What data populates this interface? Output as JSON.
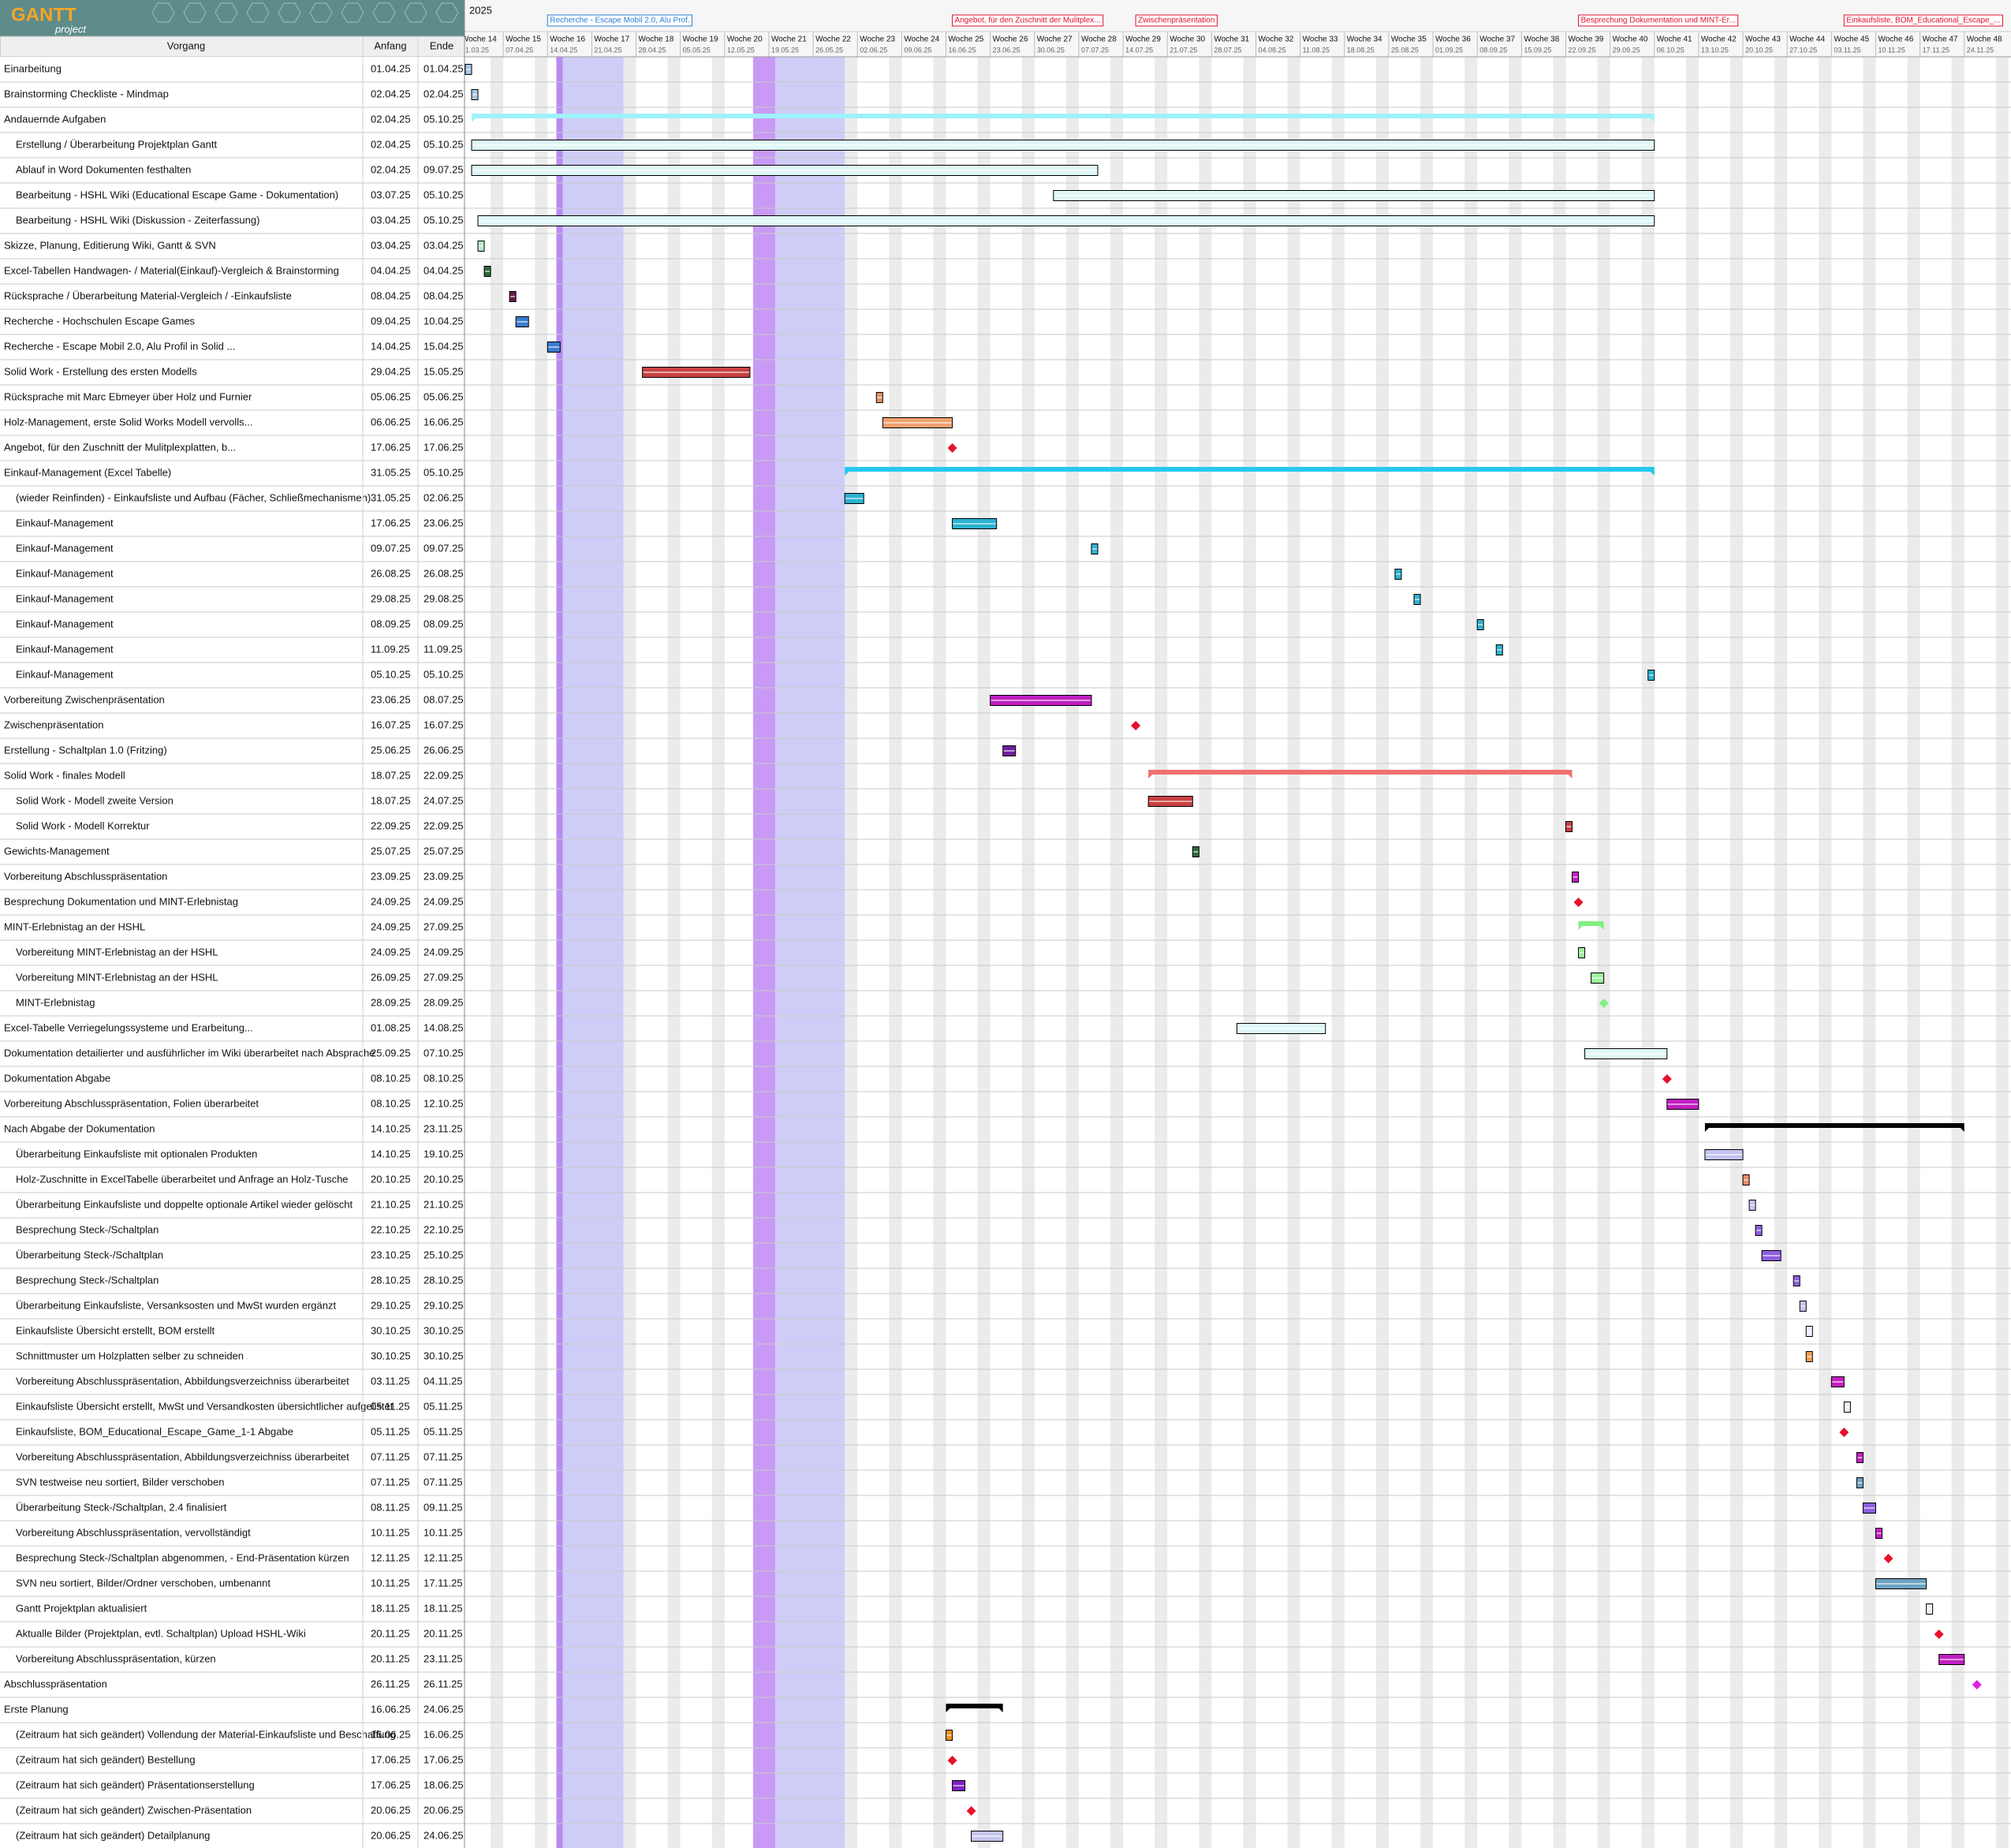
{
  "logo": {
    "title": "GANTT",
    "subtitle": "project"
  },
  "year": "2025",
  "columns": {
    "name": "Vorgang",
    "start": "Anfang",
    "end": "Ende"
  },
  "annotations": [
    "Recherche - Escape Mobil 2.0, Alu Prof.",
    "Angebot, für den Zuschnitt der Mulitplex...",
    "Zwischenpräsentation",
    "Besprechung Dokumentation und MINT-Er...",
    "Einkaufsliste, BOM_Educational_Escape_..."
  ],
  "weeks": [
    {
      "label": "Woche 14",
      "date": "31.03.25"
    },
    {
      "label": "Woche 15",
      "date": "07.04.25"
    },
    {
      "label": "Woche 16",
      "date": "14.04.25"
    },
    {
      "label": "Woche 17",
      "date": "21.04.25"
    },
    {
      "label": "Woche 18",
      "date": "28.04.25"
    },
    {
      "label": "Woche 19",
      "date": "05.05.25"
    },
    {
      "label": "Woche 20",
      "date": "12.05.25"
    },
    {
      "label": "Woche 21",
      "date": "19.05.25"
    },
    {
      "label": "Woche 22",
      "date": "26.05.25"
    },
    {
      "label": "Woche 23",
      "date": "02.06.25"
    },
    {
      "label": "Woche 24",
      "date": "09.06.25"
    },
    {
      "label": "Woche 25",
      "date": "16.06.25"
    },
    {
      "label": "Woche 26",
      "date": "23.06.25"
    },
    {
      "label": "Woche 27",
      "date": "30.06.25"
    },
    {
      "label": "Woche 28",
      "date": "07.07.25"
    },
    {
      "label": "Woche 29",
      "date": "14.07.25"
    },
    {
      "label": "Woche 30",
      "date": "21.07.25"
    },
    {
      "label": "Woche 31",
      "date": "28.07.25"
    },
    {
      "label": "Woche 32",
      "date": "04.08.25"
    },
    {
      "label": "Woche 33",
      "date": "11.08.25"
    },
    {
      "label": "Woche 34",
      "date": "18.08.25"
    },
    {
      "label": "Woche 35",
      "date": "25.08.25"
    },
    {
      "label": "Woche 36",
      "date": "01.09.25"
    },
    {
      "label": "Woche 37",
      "date": "08.09.25"
    },
    {
      "label": "Woche 38",
      "date": "15.09.25"
    },
    {
      "label": "Woche 39",
      "date": "22.09.25"
    },
    {
      "label": "Woche 40",
      "date": "29.09.25"
    },
    {
      "label": "Woche 41",
      "date": "06.10.25"
    },
    {
      "label": "Woche 42",
      "date": "13.10.25"
    },
    {
      "label": "Woche 43",
      "date": "20.10.25"
    },
    {
      "label": "Woche 44",
      "date": "27.10.25"
    },
    {
      "label": "Woche 45",
      "date": "03.11.25"
    },
    {
      "label": "Woche 46",
      "date": "10.11.25"
    },
    {
      "label": "Woche 47",
      "date": "17.11.25"
    },
    {
      "label": "Woche 48",
      "date": "24.11.25"
    }
  ],
  "tasks": [
    {
      "name": "Einarbeitung",
      "start": "01.04.25",
      "end": "01.04.25",
      "kind": "task",
      "color": "#a9c6e6",
      "indent": false
    },
    {
      "name": "Brainstorming Checkliste - Mindmap",
      "start": "02.04.25",
      "end": "02.04.25",
      "kind": "task",
      "color": "#a9c6e6",
      "indent": false
    },
    {
      "name": "Andauernde Aufgaben",
      "start": "02.04.25",
      "end": "05.10.25",
      "kind": "summary",
      "color": "#9ef2fa",
      "indent": false
    },
    {
      "name": "Erstellung / Überarbeitung Projektplan Gantt",
      "start": "02.04.25",
      "end": "05.10.25",
      "kind": "task",
      "color": "#dff7f7",
      "indent": true
    },
    {
      "name": "Ablauf in Word Dokumenten festhalten",
      "start": "02.04.25",
      "end": "09.07.25",
      "kind": "task",
      "color": "#dff7f7",
      "indent": true
    },
    {
      "name": "Bearbeitung - HSHL Wiki (Educational Escape Game - Dokumentation)",
      "start": "03.07.25",
      "end": "05.10.25",
      "kind": "task",
      "color": "#dff7f7",
      "indent": true
    },
    {
      "name": "Bearbeitung - HSHL Wiki (Diskussion - Zeiterfassung)",
      "start": "03.04.25",
      "end": "05.10.25",
      "kind": "task",
      "color": "#dff7f7",
      "indent": true
    },
    {
      "name": "Skizze, Planung, Editierung Wiki, Gantt & SVN",
      "start": "03.04.25",
      "end": "03.04.25",
      "kind": "task",
      "color": "#b8e8c8",
      "indent": false
    },
    {
      "name": "Excel-Tabellen Handwagen- / Material(Einkauf)-Vergleich & Brainstorming",
      "start": "04.04.25",
      "end": "04.04.25",
      "kind": "task",
      "color": "#2e6b3a",
      "indent": false
    },
    {
      "name": "Rücksprache / Überarbeitung Material-Vergleich / -Einkaufsliste",
      "start": "08.04.25",
      "end": "08.04.25",
      "kind": "task",
      "color": "#6b1a4e",
      "indent": false
    },
    {
      "name": "Recherche - Hochschulen Escape Games",
      "start": "09.04.25",
      "end": "10.04.25",
      "kind": "task",
      "color": "#3a7bd0",
      "indent": false
    },
    {
      "name": "Recherche - Escape Mobil 2.0, Alu Profil in Solid ...",
      "start": "14.04.25",
      "end": "15.04.25",
      "kind": "task",
      "color": "#3a7bd0",
      "indent": false
    },
    {
      "name": "Solid Work - Erstellung des ersten Modells",
      "start": "29.04.25",
      "end": "15.05.25",
      "kind": "task",
      "color": "#c84040",
      "indent": false
    },
    {
      "name": "Rücksprache mit Marc Ebmeyer über Holz und Furnier",
      "start": "05.06.25",
      "end": "05.06.25",
      "kind": "task",
      "color": "#e8906a",
      "indent": false
    },
    {
      "name": "Holz-Management, erste Solid Works Modell vervolls...",
      "start": "06.06.25",
      "end": "16.06.25",
      "kind": "task",
      "color": "#f0a070",
      "indent": false
    },
    {
      "name": "Angebot, für den Zuschnitt der Mulitplexplatten, b...",
      "start": "17.06.25",
      "end": "17.06.25",
      "kind": "milestone",
      "color": "#e8102a",
      "indent": false
    },
    {
      "name": "Einkauf-Management (Excel Tabelle)",
      "start": "31.05.25",
      "end": "05.10.25",
      "kind": "summary",
      "color": "#22c8f0",
      "indent": false
    },
    {
      "name": "(wieder Reinfinden) - Einkaufsliste und Aufbau (Fächer, Schließmechanismen)",
      "start": "31.05.25",
      "end": "02.06.25",
      "kind": "task",
      "color": "#2eb2d2",
      "indent": true
    },
    {
      "name": "Einkauf-Management",
      "start": "17.06.25",
      "end": "23.06.25",
      "kind": "task",
      "color": "#2eb2d2",
      "indent": true
    },
    {
      "name": "Einkauf-Management",
      "start": "09.07.25",
      "end": "09.07.25",
      "kind": "task",
      "color": "#2eb2d2",
      "indent": true
    },
    {
      "name": "Einkauf-Management",
      "start": "26.08.25",
      "end": "26.08.25",
      "kind": "task",
      "color": "#2eb2d2",
      "indent": true
    },
    {
      "name": "Einkauf-Management",
      "start": "29.08.25",
      "end": "29.08.25",
      "kind": "task",
      "color": "#2eb2d2",
      "indent": true
    },
    {
      "name": "Einkauf-Management",
      "start": "08.09.25",
      "end": "08.09.25",
      "kind": "task",
      "color": "#2eb2d2",
      "indent": true
    },
    {
      "name": "Einkauf-Management",
      "start": "11.09.25",
      "end": "11.09.25",
      "kind": "task",
      "color": "#2eb2d2",
      "indent": true
    },
    {
      "name": "Einkauf-Management",
      "start": "05.10.25",
      "end": "05.10.25",
      "kind": "task",
      "color": "#2eb2d2",
      "indent": true
    },
    {
      "name": "Vorbereitung Zwischenpräsentation",
      "start": "23.06.25",
      "end": "08.07.25",
      "kind": "task",
      "color": "#c21ec2",
      "indent": false
    },
    {
      "name": "Zwischenpräsentation",
      "start": "16.07.25",
      "end": "16.07.25",
      "kind": "milestone",
      "color": "#e8102a",
      "indent": false
    },
    {
      "name": "Erstellung - Schaltplan 1.0 (Fritzing)",
      "start": "25.06.25",
      "end": "26.06.25",
      "kind": "task",
      "color": "#6e1e9e",
      "indent": false
    },
    {
      "name": "Solid Work - finales Modell",
      "start": "18.07.25",
      "end": "22.09.25",
      "kind": "summary",
      "color": "#f07070",
      "indent": false
    },
    {
      "name": "Solid Work - Modell zweite Version",
      "start": "18.07.25",
      "end": "24.07.25",
      "kind": "task",
      "color": "#c84040",
      "indent": true
    },
    {
      "name": "Solid Work - Modell Korrektur",
      "start": "22.09.25",
      "end": "22.09.25",
      "kind": "task",
      "color": "#c84040",
      "indent": true
    },
    {
      "name": "Gewichts-Management",
      "start": "25.07.25",
      "end": "25.07.25",
      "kind": "task",
      "color": "#2e6b3a",
      "indent": false
    },
    {
      "name": "Vorbereitung Abschlusspräsentation",
      "start": "23.09.25",
      "end": "23.09.25",
      "kind": "task",
      "color": "#c21ec2",
      "indent": false
    },
    {
      "name": "Besprechung Dokumentation und MINT-Erlebnistag",
      "start": "24.09.25",
      "end": "24.09.25",
      "kind": "milestone",
      "color": "#e8102a",
      "indent": false
    },
    {
      "name": "MINT-Erlebnistag an der HSHL",
      "start": "24.09.25",
      "end": "27.09.25",
      "kind": "summary",
      "color": "#80f080",
      "indent": false
    },
    {
      "name": "Vorbereitung MINT-Erlebnistag an der HSHL",
      "start": "24.09.25",
      "end": "24.09.25",
      "kind": "task",
      "color": "#a0f0a0",
      "indent": true
    },
    {
      "name": "Vorbereitung MINT-Erlebnistag an der HSHL",
      "start": "26.09.25",
      "end": "27.09.25",
      "kind": "task",
      "color": "#a0f0a0",
      "indent": true
    },
    {
      "name": "MINT-Erlebnistag",
      "start": "28.09.25",
      "end": "28.09.25",
      "kind": "milestone",
      "color": "#80f080",
      "indent": true
    },
    {
      "name": "Excel-Tabelle Verriegelungssysteme und Erarbeitung...",
      "start": "01.08.25",
      "end": "14.08.25",
      "kind": "task",
      "color": "#dff7f7",
      "indent": false
    },
    {
      "name": "Dokumentation detailierter und ausführlicher im Wiki überarbeitet nach Absprache",
      "start": "25.09.25",
      "end": "07.10.25",
      "kind": "task",
      "color": "#dff7f7",
      "indent": false
    },
    {
      "name": "Dokumentation Abgabe",
      "start": "08.10.25",
      "end": "08.10.25",
      "kind": "milestone",
      "color": "#e8102a",
      "indent": false
    },
    {
      "name": "Vorbereitung Abschlusspräsentation, Folien überarbeitet",
      "start": "08.10.25",
      "end": "12.10.25",
      "kind": "task",
      "color": "#c21ec2",
      "indent": false
    },
    {
      "name": "Nach Abgabe der Dokumentation",
      "start": "14.10.25",
      "end": "23.11.25",
      "kind": "summary",
      "color": "#000000",
      "indent": false
    },
    {
      "name": "Überarbeitung Einkaufsliste mit optionalen Produkten",
      "start": "14.10.25",
      "end": "19.10.25",
      "kind": "task",
      "color": "#c4c4f0",
      "indent": true
    },
    {
      "name": "Holz-Zuschnitte in ExcelTabelle überarbeitet und Anfrage an Holz-Tusche",
      "start": "20.10.25",
      "end": "20.10.25",
      "kind": "task",
      "color": "#e8906a",
      "indent": true
    },
    {
      "name": "Überarbeitung Einkaufsliste und doppelte optionale Artikel wieder gelöscht",
      "start": "21.10.25",
      "end": "21.10.25",
      "kind": "task",
      "color": "#c4c4f0",
      "indent": true
    },
    {
      "name": "Besprechung Steck-/Schaltplan",
      "start": "22.10.25",
      "end": "22.10.25",
      "kind": "task",
      "color": "#8e5ee0",
      "indent": true
    },
    {
      "name": "Überarbeitung Steck-/Schaltplan",
      "start": "23.10.25",
      "end": "25.10.25",
      "kind": "task",
      "color": "#8e5ee0",
      "indent": true
    },
    {
      "name": "Besprechung Steck-/Schaltplan",
      "start": "28.10.25",
      "end": "28.10.25",
      "kind": "task",
      "color": "#8e5ee0",
      "indent": true
    },
    {
      "name": "Überarbeitung Einkaufsliste, Versanksosten und MwSt wurden ergänzt",
      "start": "29.10.25",
      "end": "29.10.25",
      "kind": "task",
      "color": "#c4c4f0",
      "indent": true
    },
    {
      "name": "Einkaufsliste Übersicht erstellt, BOM erstellt",
      "start": "30.10.25",
      "end": "30.10.25",
      "kind": "task",
      "color": "#eeeeff",
      "indent": true
    },
    {
      "name": "Schnittmuster um Holzplatten selber zu schneiden",
      "start": "30.10.25",
      "end": "30.10.25",
      "kind": "task",
      "color": "#f0a050",
      "indent": true
    },
    {
      "name": "Vorbereitung Abschlusspräsentation, Abbildungsverzeichniss überarbeitet",
      "start": "03.11.25",
      "end": "04.11.25",
      "kind": "task",
      "color": "#c21ec2",
      "indent": true
    },
    {
      "name": "Einkaufsliste Übersicht erstellt, MwSt und Versandkosten übersichtlicher aufgelistet",
      "start": "05.11.25",
      "end": "05.11.25",
      "kind": "task",
      "color": "#eeeeff",
      "indent": true
    },
    {
      "name": "Einkaufsliste, BOM_Educational_Escape_Game_1-1 Abgabe",
      "start": "05.11.25",
      "end": "05.11.25",
      "kind": "milestone",
      "color": "#e8102a",
      "indent": true
    },
    {
      "name": "Vorbereitung Abschlusspräsentation, Abbildungsverzeichniss überarbeitet",
      "start": "07.11.25",
      "end": "07.11.25",
      "kind": "task",
      "color": "#c21ec2",
      "indent": true
    },
    {
      "name": "SVN testweise neu sortiert, Bilder verschoben",
      "start": "07.11.25",
      "end": "07.11.25",
      "kind": "task",
      "color": "#6ea2c2",
      "indent": true
    },
    {
      "name": "Überarbeitung Steck-/Schaltplan, 2.4 finalisiert",
      "start": "08.11.25",
      "end": "09.11.25",
      "kind": "task",
      "color": "#8e5ee0",
      "indent": true
    },
    {
      "name": "Vorbereitung Abschlusspräsentation, vervollständigt",
      "start": "10.11.25",
      "end": "10.11.25",
      "kind": "task",
      "color": "#c21ec2",
      "indent": true
    },
    {
      "name": "Besprechung Steck-/Schaltplan abgenommen, - End-Präsentation kürzen",
      "start": "12.11.25",
      "end": "12.11.25",
      "kind": "milestone",
      "color": "#e8102a",
      "indent": true
    },
    {
      "name": "SVN neu sortiert, Bilder/Ordner verschoben, umbenannt",
      "start": "10.11.25",
      "end": "17.11.25",
      "kind": "task",
      "color": "#6ea2c2",
      "indent": true
    },
    {
      "name": "Gantt Projektplan aktualisiert",
      "start": "18.11.25",
      "end": "18.11.25",
      "kind": "task",
      "color": "#eeeeff",
      "indent": true
    },
    {
      "name": "Aktualle Bilder (Projektplan, evtl. Schaltplan) Upload HSHL-Wiki",
      "start": "20.11.25",
      "end": "20.11.25",
      "kind": "milestone",
      "color": "#e8102a",
      "indent": true
    },
    {
      "name": "Vorbereitung Abschlusspräsentation, kürzen",
      "start": "20.11.25",
      "end": "23.11.25",
      "kind": "task",
      "color": "#c21ec2",
      "indent": true
    },
    {
      "name": "Abschlusspräsentation",
      "start": "26.11.25",
      "end": "26.11.25",
      "kind": "milestone",
      "color": "#e020e0",
      "indent": false
    },
    {
      "name": "Erste Planung",
      "start": "16.06.25",
      "end": "24.06.25",
      "kind": "summary",
      "color": "#000000",
      "indent": false
    },
    {
      "name": "(Zeitraum hat sich geändert) Vollendung der Material-Einkaufsliste und Beschaffung",
      "start": "16.06.25",
      "end": "16.06.25",
      "kind": "task",
      "color": "#f09020",
      "indent": true
    },
    {
      "name": "(Zeitraum hat sich geändert) Bestellung",
      "start": "17.06.25",
      "end": "17.06.25",
      "kind": "milestone",
      "color": "#e8102a",
      "indent": true
    },
    {
      "name": "(Zeitraum hat sich geändert) Präsentationserstellung",
      "start": "17.06.25",
      "end": "18.06.25",
      "kind": "task",
      "color": "#8020c4",
      "indent": true
    },
    {
      "name": "(Zeitraum hat sich geändert) Zwischen-Präsentation",
      "start": "20.06.25",
      "end": "20.06.25",
      "kind": "milestone",
      "color": "#e8102a",
      "indent": true
    },
    {
      "name": "(Zeitraum hat sich geändert) Detailplanung",
      "start": "20.06.25",
      "end": "24.06.25",
      "kind": "task",
      "color": "#c4c4f0",
      "indent": true
    }
  ]
}
